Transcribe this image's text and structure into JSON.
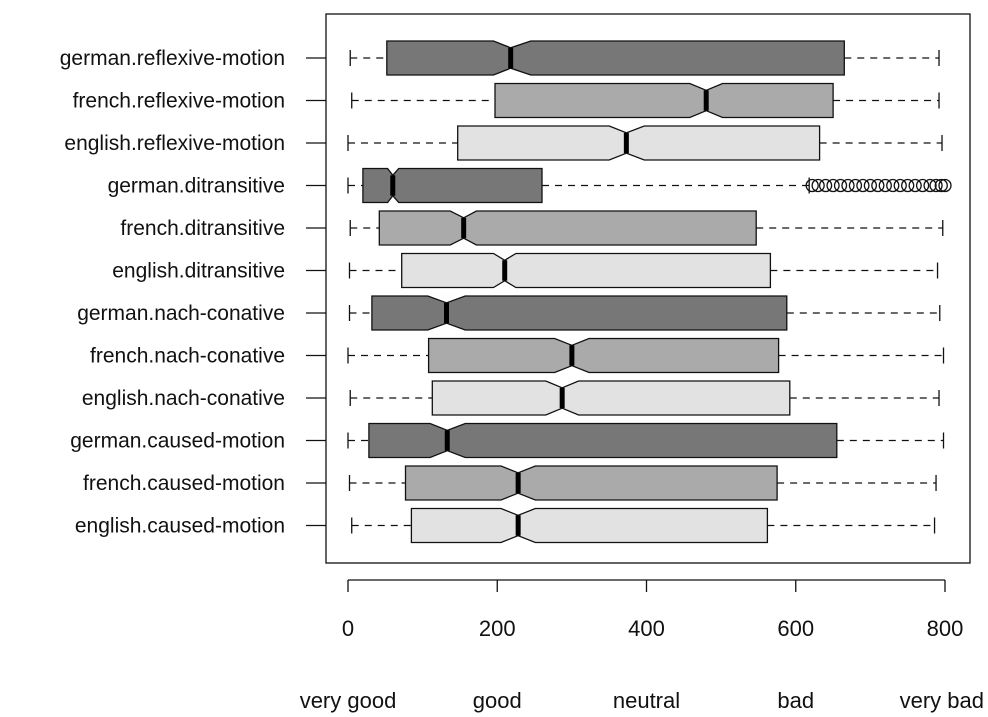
{
  "chart_data": {
    "type": "box",
    "orientation": "horizontal",
    "notched": true,
    "xlim": [
      -30,
      810
    ],
    "x_ticks": [
      0,
      200,
      400,
      600,
      800
    ],
    "x_tick_labels": [
      "0",
      "200",
      "400",
      "600",
      "800"
    ],
    "scale_labels": [
      {
        "text": "very good",
        "value": 0
      },
      {
        "text": "good",
        "value": 200
      },
      {
        "text": "neutral",
        "value": 400
      },
      {
        "text": "bad",
        "value": 600
      },
      {
        "text": "very bad",
        "value": 800
      }
    ],
    "colors": {
      "german": "#777777",
      "french": "#aaaaaa",
      "english": "#e2e2e2"
    },
    "series": [
      {
        "label": "german.reflexive-motion",
        "language": "german",
        "min": 3,
        "q1": 52,
        "median": 218,
        "q3": 665,
        "max": 792,
        "notch_low": 195,
        "notch_high": 245,
        "outliers": []
      },
      {
        "label": "french.reflexive-motion",
        "language": "french",
        "min": 5,
        "q1": 197,
        "median": 480,
        "q3": 650,
        "max": 792,
        "notch_low": 458,
        "notch_high": 502,
        "outliers": []
      },
      {
        "label": "english.reflexive-motion",
        "language": "english",
        "min": 0,
        "q1": 147,
        "median": 373,
        "q3": 632,
        "max": 796,
        "notch_low": 350,
        "notch_high": 397,
        "outliers": []
      },
      {
        "label": "german.ditransitive",
        "language": "german",
        "min": 0,
        "q1": 20,
        "median": 60,
        "q3": 260,
        "max": 618,
        "notch_low": 53,
        "notch_high": 68,
        "outliers": [
          622,
          630,
          640,
          650,
          660,
          670,
          680,
          690,
          700,
          710,
          720,
          730,
          740,
          750,
          760,
          770,
          780,
          788,
          795,
          800
        ]
      },
      {
        "label": "french.ditransitive",
        "language": "french",
        "min": 3,
        "q1": 42,
        "median": 155,
        "q3": 547,
        "max": 797,
        "notch_low": 137,
        "notch_high": 172,
        "outliers": []
      },
      {
        "label": "english.ditransitive",
        "language": "english",
        "min": 2,
        "q1": 72,
        "median": 210,
        "q3": 566,
        "max": 790,
        "notch_low": 195,
        "notch_high": 225,
        "outliers": []
      },
      {
        "label": "german.nach-conative",
        "language": "german",
        "min": 2,
        "q1": 32,
        "median": 132,
        "q3": 588,
        "max": 793,
        "notch_low": 107,
        "notch_high": 157,
        "outliers": []
      },
      {
        "label": "french.nach-conative",
        "language": "french",
        "min": 0,
        "q1": 108,
        "median": 300,
        "q3": 577,
        "max": 798,
        "notch_low": 277,
        "notch_high": 323,
        "outliers": []
      },
      {
        "label": "english.nach-conative",
        "language": "english",
        "min": 3,
        "q1": 113,
        "median": 287,
        "q3": 592,
        "max": 792,
        "notch_low": 265,
        "notch_high": 309,
        "outliers": []
      },
      {
        "label": "german.caused-motion",
        "language": "german",
        "min": 0,
        "q1": 28,
        "median": 133,
        "q3": 655,
        "max": 798,
        "notch_low": 110,
        "notch_high": 157,
        "outliers": []
      },
      {
        "label": "french.caused-motion",
        "language": "french",
        "min": 2,
        "q1": 77,
        "median": 228,
        "q3": 575,
        "max": 788,
        "notch_low": 205,
        "notch_high": 251,
        "outliers": []
      },
      {
        "label": "english.caused-motion",
        "language": "english",
        "min": 5,
        "q1": 85,
        "median": 228,
        "q3": 562,
        "max": 786,
        "notch_low": 205,
        "notch_high": 251,
        "outliers": []
      }
    ]
  }
}
